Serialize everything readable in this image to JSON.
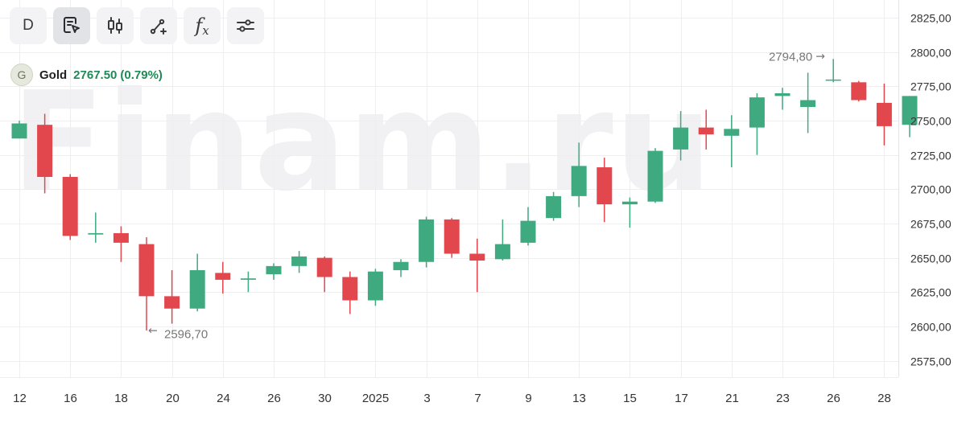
{
  "toolbar": {
    "interval_label": "D",
    "buttons": [
      {
        "name": "interval-button",
        "icon": "text",
        "label": "D",
        "active": false
      },
      {
        "name": "cursor-tool-button",
        "icon": "cursor-doc-icon",
        "active": true
      },
      {
        "name": "chart-type-button",
        "icon": "candlestick-icon",
        "active": false
      },
      {
        "name": "drawing-tool-button",
        "icon": "line-draw-icon",
        "active": false
      },
      {
        "name": "indicators-button",
        "icon": "function-icon",
        "active": false
      },
      {
        "name": "settings-button",
        "icon": "sliders-icon",
        "active": false
      }
    ]
  },
  "legend": {
    "avatar_letter": "G",
    "name": "Gold",
    "price": "2767.50",
    "change": "(0.79%)",
    "color": "#1f8a55"
  },
  "watermark": "Finam.ru",
  "colors": {
    "up": "#3faa80",
    "down": "#e3474e",
    "grid": "#eeeef1",
    "axis_text": "#333333",
    "annotation": "#777777"
  },
  "chart_data": {
    "type": "candlestick",
    "title": "",
    "xlabel": "",
    "ylabel": "",
    "ylim": [
      2563,
      2838
    ],
    "y_ticks": [
      "2825,00",
      "2800,00",
      "2775,00",
      "2750,00",
      "2725,00",
      "2700,00",
      "2675,00",
      "2650,00",
      "2625,00",
      "2600,00",
      "2575,00"
    ],
    "y_tick_values": [
      2825,
      2800,
      2775,
      2750,
      2725,
      2700,
      2675,
      2650,
      2625,
      2600,
      2575
    ],
    "x_ticks": [
      {
        "label": "12",
        "i": 0
      },
      {
        "label": "16",
        "i": 2
      },
      {
        "label": "18",
        "i": 4
      },
      {
        "label": "20",
        "i": 6
      },
      {
        "label": "24",
        "i": 8
      },
      {
        "label": "26",
        "i": 10
      },
      {
        "label": "30",
        "i": 12
      },
      {
        "label": "2025",
        "i": 14
      },
      {
        "label": "3",
        "i": 16
      },
      {
        "label": "7",
        "i": 18
      },
      {
        "label": "9",
        "i": 20
      },
      {
        "label": "13",
        "i": 22
      },
      {
        "label": "15",
        "i": 24
      },
      {
        "label": "17",
        "i": 26
      },
      {
        "label": "21",
        "i": 28
      },
      {
        "label": "23",
        "i": 30
      },
      {
        "label": "26",
        "i": 32
      },
      {
        "label": "28",
        "i": 34
      }
    ],
    "candles": [
      {
        "o": 2737,
        "h": 2750,
        "l": 2737,
        "c": 2748
      },
      {
        "o": 2747,
        "h": 2755,
        "l": 2697,
        "c": 2709
      },
      {
        "o": 2709,
        "h": 2711,
        "l": 2663,
        "c": 2666
      },
      {
        "o": 2667,
        "h": 2683,
        "l": 2661,
        "c": 2668
      },
      {
        "o": 2668,
        "h": 2673,
        "l": 2647,
        "c": 2661
      },
      {
        "o": 2660,
        "h": 2665,
        "l": 2597,
        "c": 2622
      },
      {
        "o": 2622,
        "h": 2641,
        "l": 2602,
        "c": 2613
      },
      {
        "o": 2613,
        "h": 2653,
        "l": 2611,
        "c": 2641
      },
      {
        "o": 2639,
        "h": 2647,
        "l": 2624,
        "c": 2634
      },
      {
        "o": 2634,
        "h": 2640,
        "l": 2625,
        "c": 2635
      },
      {
        "o": 2638,
        "h": 2646,
        "l": 2634,
        "c": 2644
      },
      {
        "o": 2644,
        "h": 2655,
        "l": 2639,
        "c": 2651
      },
      {
        "o": 2650,
        "h": 2651,
        "l": 2625,
        "c": 2636
      },
      {
        "o": 2636,
        "h": 2640,
        "l": 2609,
        "c": 2619
      },
      {
        "o": 2619,
        "h": 2642,
        "l": 2615,
        "c": 2640
      },
      {
        "o": 2641,
        "h": 2649,
        "l": 2636,
        "c": 2647
      },
      {
        "o": 2647,
        "h": 2680,
        "l": 2643,
        "c": 2678
      },
      {
        "o": 2678,
        "h": 2679,
        "l": 2650,
        "c": 2653
      },
      {
        "o": 2653,
        "h": 2664,
        "l": 2625,
        "c": 2648
      },
      {
        "o": 2649,
        "h": 2678,
        "l": 2648,
        "c": 2660
      },
      {
        "o": 2661,
        "h": 2687,
        "l": 2659,
        "c": 2677
      },
      {
        "o": 2679,
        "h": 2698,
        "l": 2677,
        "c": 2695
      },
      {
        "o": 2695,
        "h": 2734,
        "l": 2687,
        "c": 2717
      },
      {
        "o": 2716,
        "h": 2723,
        "l": 2676,
        "c": 2689
      },
      {
        "o": 2689,
        "h": 2694,
        "l": 2672,
        "c": 2691
      },
      {
        "o": 2691,
        "h": 2730,
        "l": 2690,
        "c": 2728
      },
      {
        "o": 2729,
        "h": 2757,
        "l": 2721,
        "c": 2745
      },
      {
        "o": 2745,
        "h": 2758,
        "l": 2729,
        "c": 2740
      },
      {
        "o": 2739,
        "h": 2754,
        "l": 2716,
        "c": 2744
      },
      {
        "o": 2745,
        "h": 2770,
        "l": 2725,
        "c": 2767
      },
      {
        "o": 2768,
        "h": 2774,
        "l": 2758,
        "c": 2770
      },
      {
        "o": 2760,
        "h": 2785,
        "l": 2741,
        "c": 2765
      },
      {
        "o": 2780,
        "h": 2795,
        "l": 2778,
        "c": 2780
      },
      {
        "o": 2778,
        "h": 2779,
        "l": 2764,
        "c": 2765
      },
      {
        "o": 2763,
        "h": 2777,
        "l": 2732,
        "c": 2746
      },
      {
        "o": 2747,
        "h": 2768,
        "l": 2738,
        "c": 2768
      }
    ],
    "annotations": [
      {
        "label": "2794,80",
        "value": 2794.8,
        "i": 32,
        "side": "left"
      },
      {
        "label": "2596,70",
        "value": 2596.7,
        "i": 5,
        "side": "right"
      }
    ]
  }
}
